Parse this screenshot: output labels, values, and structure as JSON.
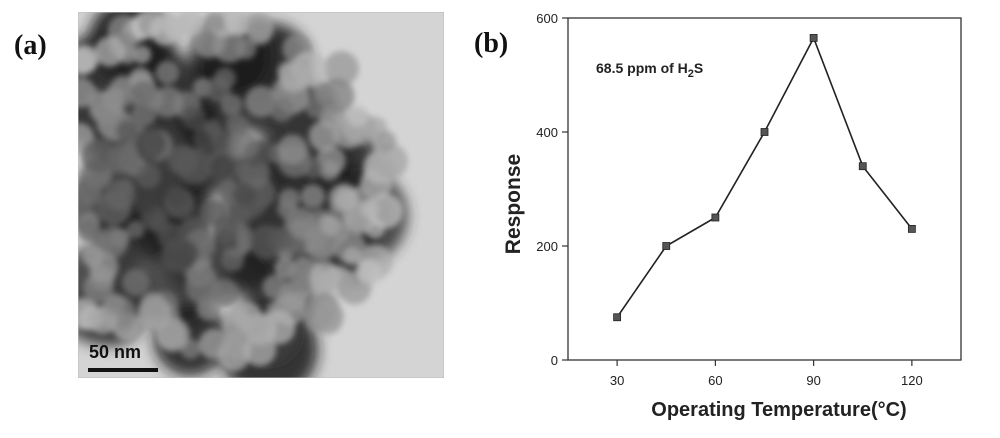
{
  "panel_a": {
    "label": "(a)",
    "image": "TEM micrograph of agglomerated nanoparticles",
    "scale_bar_text": "50 nm"
  },
  "panel_b": {
    "label": "(b)"
  },
  "chart_data": {
    "type": "line",
    "annotation_prefix": "68.5 ppm of H",
    "annotation_sub": "2",
    "annotation_suffix": "S",
    "xlabel": "Operating Temperature(°C)",
    "ylabel": "Response",
    "x": [
      30,
      45,
      60,
      75,
      90,
      105,
      120
    ],
    "y": [
      75,
      200,
      250,
      400,
      565,
      340,
      230
    ],
    "xticks": [
      30,
      60,
      90,
      120
    ],
    "yticks": [
      0,
      200,
      400,
      600
    ],
    "xlim": [
      15,
      135
    ],
    "ylim": [
      0,
      600
    ],
    "grid": false,
    "line_color": "#222222",
    "marker_color": "#555555"
  }
}
